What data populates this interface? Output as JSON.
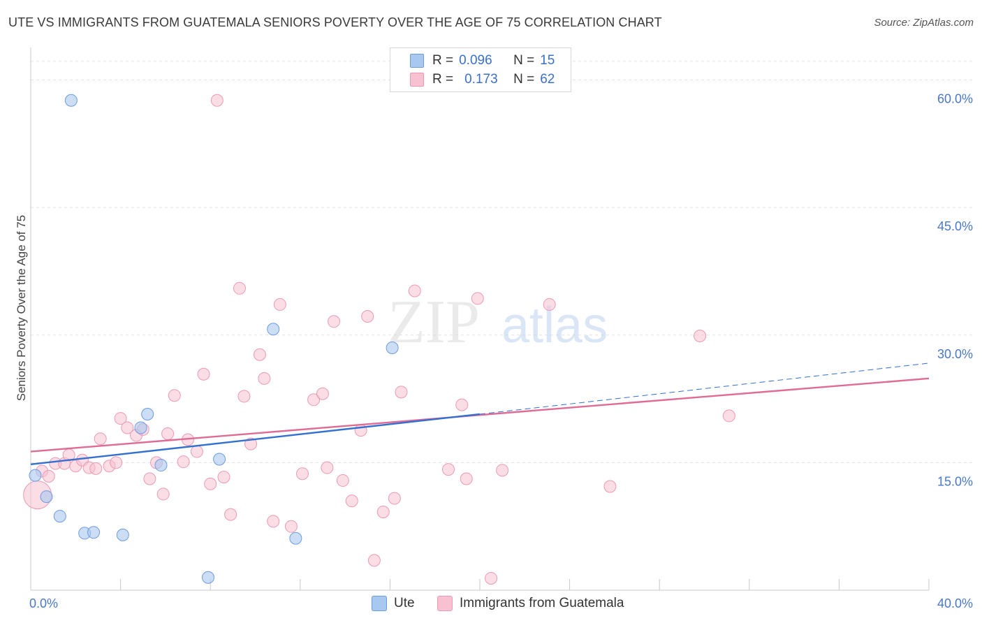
{
  "title": "UTE VS IMMIGRANTS FROM GUATEMALA SENIORS POVERTY OVER THE AGE OF 75 CORRELATION CHART",
  "source": "Source: ZipAtlas.com",
  "watermark": {
    "zip": "ZIP",
    "atlas": "atlas"
  },
  "legend": {
    "rows": [
      {
        "r_label": "R =",
        "r_value": "0.096",
        "n_label": "N =",
        "n_value": "15"
      },
      {
        "r_label": "R =",
        "r_value": "0.173",
        "n_label": "N =",
        "n_value": "62"
      }
    ]
  },
  "bottom_legend": {
    "ute": "Ute",
    "guatemala": "Immigrants from Guatemala"
  },
  "colors": {
    "ute_fill": "#a9c8f0",
    "ute_stroke": "#6d9be0",
    "ute_line": "#3370d0",
    "gua_fill": "#f7c1d2",
    "gua_stroke": "#ec9ab4",
    "gua_line": "#e06b94",
    "grid": "#e2e2e2",
    "axis_text": "#4a78c8"
  },
  "chart_data": {
    "type": "scatter",
    "title": "UTE VS IMMIGRANTS FROM GUATEMALA SENIORS POVERTY OVER THE AGE OF 75 CORRELATION CHART",
    "xlabel": "",
    "ylabel": "Seniors Poverty Over the Age of 75",
    "xlim": [
      0,
      40
    ],
    "ylim": [
      0,
      63
    ],
    "x_tick_labels": [
      "0.0%",
      "40.0%"
    ],
    "y_ticks": [
      15,
      30,
      45,
      60
    ],
    "y_tick_labels": [
      "15.0%",
      "30.0%",
      "45.0%",
      "60.0%"
    ],
    "legend_position": "top-center",
    "series": [
      {
        "name": "Ute",
        "R": 0.096,
        "N": 15,
        "points": [
          [
            0.2,
            13.5
          ],
          [
            0.7,
            11.0
          ],
          [
            1.3,
            8.7
          ],
          [
            1.8,
            57.6
          ],
          [
            2.4,
            6.7
          ],
          [
            2.8,
            6.8
          ],
          [
            4.1,
            6.5
          ],
          [
            4.9,
            19.1
          ],
          [
            5.2,
            20.7
          ],
          [
            5.8,
            14.7
          ],
          [
            7.9,
            1.5
          ],
          [
            8.4,
            15.4
          ],
          [
            10.8,
            30.7
          ],
          [
            11.8,
            6.1
          ],
          [
            16.1,
            28.5
          ]
        ],
        "trend": {
          "x0": 0,
          "y0": 14.8,
          "x1": 20,
          "y1": 20.7,
          "dashed_to_x": 40,
          "dashed_to_y": 26.7
        }
      },
      {
        "name": "Immigrants from Guatemala",
        "R": 0.173,
        "N": 62,
        "points": [
          [
            0.3,
            11.2
          ],
          [
            0.5,
            14.0
          ],
          [
            0.8,
            13.4
          ],
          [
            1.1,
            14.9
          ],
          [
            1.5,
            14.9
          ],
          [
            1.7,
            15.9
          ],
          [
            2.0,
            14.6
          ],
          [
            2.3,
            15.3
          ],
          [
            2.6,
            14.4
          ],
          [
            2.9,
            14.3
          ],
          [
            3.1,
            17.8
          ],
          [
            3.5,
            14.6
          ],
          [
            3.8,
            15.0
          ],
          [
            4.0,
            20.2
          ],
          [
            4.3,
            19.1
          ],
          [
            4.7,
            18.2
          ],
          [
            5.0,
            18.9
          ],
          [
            5.3,
            13.1
          ],
          [
            5.6,
            15.0
          ],
          [
            5.9,
            11.3
          ],
          [
            6.1,
            18.4
          ],
          [
            6.4,
            22.9
          ],
          [
            6.8,
            15.1
          ],
          [
            7.0,
            17.7
          ],
          [
            7.4,
            16.3
          ],
          [
            7.7,
            25.4
          ],
          [
            8.0,
            12.5
          ],
          [
            8.3,
            57.6
          ],
          [
            8.6,
            13.3
          ],
          [
            8.9,
            8.9
          ],
          [
            9.3,
            35.5
          ],
          [
            9.5,
            22.8
          ],
          [
            9.8,
            17.2
          ],
          [
            10.2,
            27.7
          ],
          [
            10.4,
            24.9
          ],
          [
            10.8,
            8.1
          ],
          [
            11.1,
            33.6
          ],
          [
            11.6,
            7.5
          ],
          [
            12.1,
            13.7
          ],
          [
            12.6,
            22.4
          ],
          [
            13.0,
            23.1
          ],
          [
            13.2,
            14.4
          ],
          [
            13.5,
            31.6
          ],
          [
            13.9,
            12.9
          ],
          [
            14.3,
            10.5
          ],
          [
            14.7,
            18.8
          ],
          [
            15.0,
            32.2
          ],
          [
            15.3,
            3.5
          ],
          [
            15.7,
            9.2
          ],
          [
            16.2,
            10.8
          ],
          [
            16.5,
            23.3
          ],
          [
            17.1,
            35.2
          ],
          [
            18.6,
            14.2
          ],
          [
            19.2,
            21.8
          ],
          [
            19.4,
            13.1
          ],
          [
            19.9,
            34.3
          ],
          [
            20.5,
            1.4
          ],
          [
            21.0,
            14.1
          ],
          [
            23.1,
            33.6
          ],
          [
            25.8,
            12.2
          ],
          [
            29.8,
            29.9
          ],
          [
            31.1,
            20.5
          ]
        ],
        "trend": {
          "x0": 0,
          "y0": 16.3,
          "x1": 40,
          "y1": 24.9
        }
      }
    ]
  }
}
